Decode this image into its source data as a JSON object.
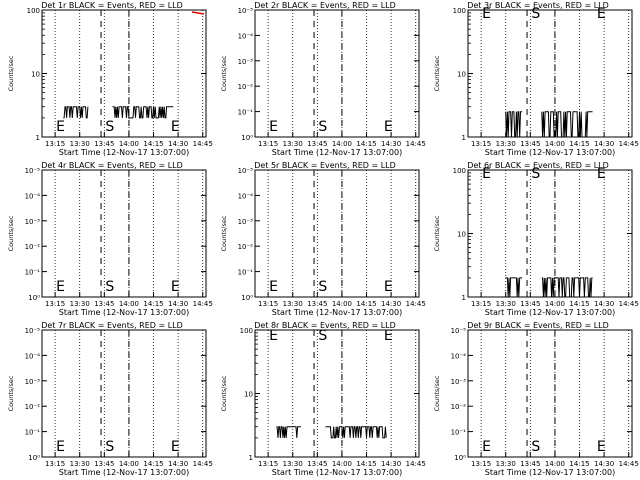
{
  "chart_data": [
    {
      "type": "line",
      "title": "Det 1r BLACK = Events, RED = LLD",
      "xlabel": "Start Time (12-Nov-17 13:07:00)",
      "ylabel": "Counts/sec",
      "yscale": "log",
      "yticks": [
        "1",
        "10",
        "100"
      ],
      "xticks": [
        "13:15",
        "13:30",
        "13:45",
        "14:00",
        "14:15",
        "14:30",
        "14:45"
      ],
      "markers": [
        {
          "label": "E",
          "t": "13:15"
        },
        {
          "label": "S",
          "t": "13:45"
        },
        {
          "label": "E",
          "t": "14:25"
        }
      ],
      "events": {
        "segments": [
          [
            "13:20",
            "13:35"
          ],
          [
            "13:50",
            "14:27"
          ]
        ],
        "low": 2,
        "high": 3
      },
      "lld_tail": true
    },
    {
      "type": "line",
      "title": "Det 2r BLACK = Events, RED = LLD",
      "xlabel": "Start Time (12-Nov-17 13:07:00)",
      "ylabel": "Counts/sec",
      "yscale": "log",
      "yticks": [
        "10⁰",
        "10⁻¹",
        "10⁻²",
        "10⁻³",
        "10⁻⁴",
        "10⁻⁵"
      ],
      "xticks": [
        "13:15",
        "13:30",
        "13:45",
        "14:00",
        "14:15",
        "14:30",
        "14:45"
      ],
      "markers": [
        {
          "label": "E",
          "t": "13:15"
        },
        {
          "label": "S",
          "t": "13:45"
        },
        {
          "label": "E",
          "t": "14:25"
        }
      ],
      "events": null,
      "lld_tail": false
    },
    {
      "type": "line",
      "title": "Det 3r BLACK = Events, RED = LLD",
      "xlabel": "Start Time (12-Nov-17 13:07:00)",
      "ylabel": "Counts/sec",
      "yscale": "log",
      "yticks": [
        "1",
        "10",
        "100"
      ],
      "xticks": [
        "13:15",
        "13:30",
        "13:45",
        "14:00",
        "14:15",
        "14:30",
        "14:45"
      ],
      "markers": [
        {
          "label": "E",
          "t": "13:15"
        },
        {
          "label": "S",
          "t": "13:45"
        },
        {
          "label": "E",
          "t": "14:25"
        }
      ],
      "events": {
        "segments": [
          [
            "13:30",
            "13:40"
          ],
          [
            "13:52",
            "14:23"
          ]
        ],
        "low": 1,
        "high": 2.5
      },
      "lld_tail": false
    },
    {
      "type": "line",
      "title": "Det 4r BLACK = Events, RED = LLD",
      "xlabel": "Start Time (12-Nov-17 13:07:00)",
      "ylabel": "Counts/sec",
      "yscale": "log",
      "yticks": [
        "10⁰",
        "10⁻¹",
        "10⁻²",
        "10⁻³",
        "10⁻⁴",
        "10⁻⁵"
      ],
      "xticks": [
        "13:15",
        "13:30",
        "13:45",
        "14:00",
        "14:15",
        "14:30",
        "14:45"
      ],
      "markers": [
        {
          "label": "E",
          "t": "13:15"
        },
        {
          "label": "S",
          "t": "13:45"
        },
        {
          "label": "E",
          "t": "14:25"
        }
      ],
      "events": null,
      "lld_tail": false
    },
    {
      "type": "line",
      "title": "Det 5r BLACK = Events, RED = LLD",
      "xlabel": "Start Time (12-Nov-17 13:07:00)",
      "ylabel": "Counts/sec",
      "yscale": "log",
      "yticks": [
        "10⁰",
        "10⁻¹",
        "10⁻²",
        "10⁻³",
        "10⁻⁴",
        "10⁻⁵"
      ],
      "xticks": [
        "13:15",
        "13:30",
        "13:45",
        "14:00",
        "14:15",
        "14:30",
        "14:45"
      ],
      "markers": [
        {
          "label": "E",
          "t": "13:15"
        },
        {
          "label": "S",
          "t": "13:45"
        },
        {
          "label": "E",
          "t": "14:25"
        }
      ],
      "events": null,
      "lld_tail": false
    },
    {
      "type": "line",
      "title": "Det 6r BLACK = Events, RED = LLD",
      "xlabel": "Start Time (12-Nov-17 13:07:00)",
      "ylabel": "Counts/sec",
      "yscale": "log",
      "yticks": [
        "1",
        "10",
        "100"
      ],
      "xticks": [
        "13:15",
        "13:30",
        "13:45",
        "14:00",
        "14:15",
        "14:30",
        "14:45"
      ],
      "markers": [
        {
          "label": "E",
          "t": "13:15"
        },
        {
          "label": "S",
          "t": "13:45"
        },
        {
          "label": "E",
          "t": "14:25"
        }
      ],
      "events": {
        "segments": [
          [
            "13:30",
            "13:40"
          ],
          [
            "13:52",
            "14:23"
          ]
        ],
        "low": 1,
        "high": 2
      },
      "lld_tail": false
    },
    {
      "type": "line",
      "title": "Det 7r BLACK = Events, RED = LLD",
      "xlabel": "Start Time (12-Nov-17 13:07:00)",
      "ylabel": "Counts/sec",
      "yscale": "log",
      "yticks": [
        "10⁰",
        "10⁻¹",
        "10⁻²",
        "10⁻³",
        "10⁻⁴",
        "10⁻⁵"
      ],
      "xticks": [
        "13:15",
        "13:30",
        "13:45",
        "14:00",
        "14:15",
        "14:30",
        "14:45"
      ],
      "markers": [
        {
          "label": "E",
          "t": "13:15"
        },
        {
          "label": "S",
          "t": "13:45"
        },
        {
          "label": "E",
          "t": "14:25"
        }
      ],
      "events": null,
      "lld_tail": false
    },
    {
      "type": "line",
      "title": "Det 8r BLACK = Events, RED = LLD",
      "xlabel": "Start Time (12-Nov-17 13:07:00)",
      "ylabel": "Counts/sec",
      "yscale": "log",
      "yticks": [
        "1",
        "10",
        "100"
      ],
      "xticks": [
        "13:15",
        "13:30",
        "13:45",
        "14:00",
        "14:15",
        "14:30",
        "14:45"
      ],
      "markers": [
        {
          "label": "E",
          "t": "13:15"
        },
        {
          "label": "S",
          "t": "13:45"
        },
        {
          "label": "E",
          "t": "14:25"
        }
      ],
      "events": {
        "segments": [
          [
            "13:20",
            "13:35"
          ],
          [
            "13:50",
            "14:27"
          ]
        ],
        "low": 2,
        "high": 3
      },
      "lld_tail": false
    },
    {
      "type": "line",
      "title": "Det 9r BLACK = Events, RED = LLD",
      "xlabel": "Start Time (12-Nov-17 13:07:00)",
      "ylabel": "Counts/sec",
      "yscale": "log",
      "yticks": [
        "10⁰",
        "10⁻¹",
        "10⁻²",
        "10⁻³",
        "10⁻⁴",
        "10⁻⁵"
      ],
      "xticks": [
        "13:15",
        "13:30",
        "13:45",
        "14:00",
        "14:15",
        "14:30",
        "14:45"
      ],
      "markers": [
        {
          "label": "E",
          "t": "13:15"
        },
        {
          "label": "S",
          "t": "13:45"
        },
        {
          "label": "E",
          "t": "14:25"
        }
      ],
      "events": null,
      "lld_tail": false
    }
  ]
}
